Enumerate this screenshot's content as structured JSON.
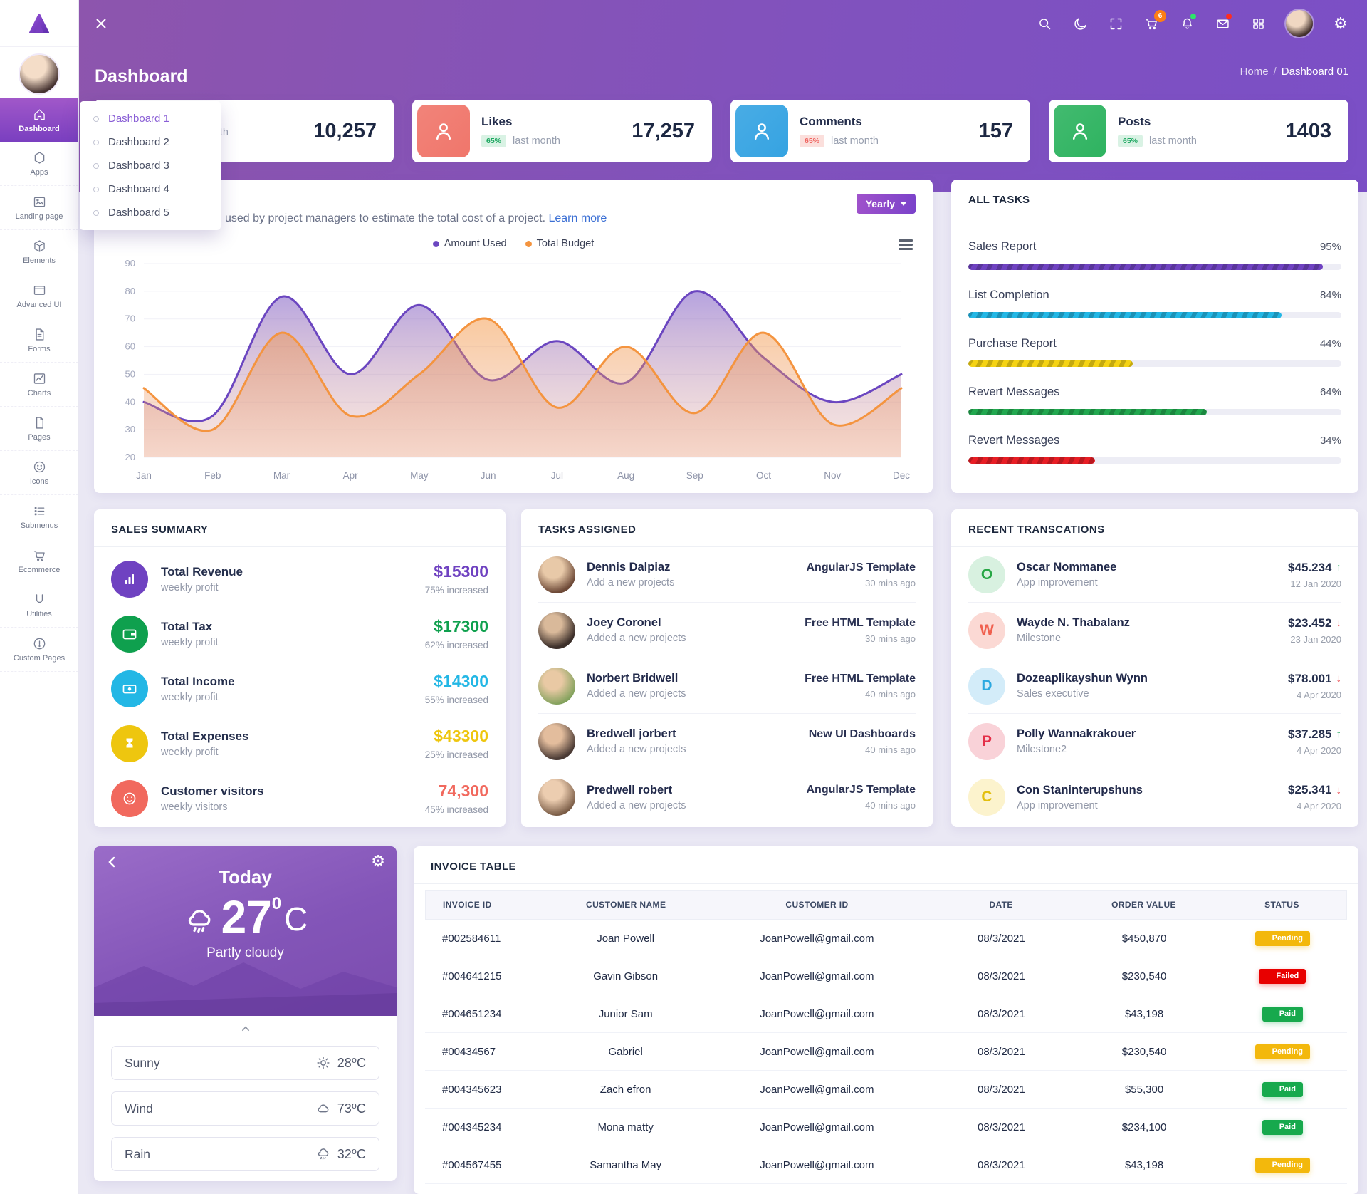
{
  "navbar": {
    "cart_badge": "6"
  },
  "header": {
    "title": "Dashboard",
    "breadcrumb_home": "Home",
    "breadcrumb_sep": "/",
    "breadcrumb_current": "Dashboard 01"
  },
  "sidebar": {
    "items": [
      {
        "label": "Dashboard",
        "active": true
      },
      {
        "label": "Apps"
      },
      {
        "label": "Landing page"
      },
      {
        "label": "Elements"
      },
      {
        "label": "Advanced UI"
      },
      {
        "label": "Forms"
      },
      {
        "label": "Charts"
      },
      {
        "label": "Pages"
      },
      {
        "label": "Icons"
      },
      {
        "label": "Submenus"
      },
      {
        "label": "Ecommerce"
      },
      {
        "label": "Utilities"
      },
      {
        "label": "Custom Pages"
      }
    ]
  },
  "dropdown": {
    "items": [
      "Dashboard 1",
      "Dashboard 2",
      "Dashboard 3",
      "Dashboard 4",
      "Dashboard 5"
    ]
  },
  "stat_cards": [
    {
      "value": "10,257",
      "period": "last month"
    },
    {
      "title": "Likes",
      "badge": "65%",
      "period": "last month",
      "value": "17,257",
      "icon_color": "#f0766b",
      "badge_bg": "#d9f2e4",
      "badge_color": "#1fa862"
    },
    {
      "title": "Comments",
      "badge": "65%",
      "period": "last month",
      "value": "157",
      "icon_color": "#35a3e2",
      "badge_bg": "#fbdfdc",
      "badge_color": "#ef6460"
    },
    {
      "title": "Posts",
      "badge": "65%",
      "period": "last month",
      "value": "1403",
      "icon_color": "#2eb360",
      "badge_bg": "#d9f2e4",
      "badge_color": "#1fa862"
    }
  ],
  "budget_card": {
    "description": "l used by project managers to estimate the total cost of a project.",
    "link": "Learn more",
    "period_button": "Yearly"
  },
  "chart_data": {
    "type": "area",
    "x": [
      "Jan",
      "Feb",
      "Mar",
      "Apr",
      "May",
      "Jun",
      "Jul",
      "Aug",
      "Sep",
      "Oct",
      "Nov",
      "Dec"
    ],
    "series": [
      {
        "name": "Amount Used",
        "color": "#6b46c0",
        "values": [
          40,
          35,
          78,
          50,
          75,
          48,
          62,
          47,
          80,
          56,
          40,
          50
        ]
      },
      {
        "name": "Total Budget",
        "color": "#f4943f",
        "values": [
          45,
          30,
          65,
          35,
          50,
          70,
          38,
          60,
          36,
          65,
          32,
          45
        ]
      }
    ],
    "ylim": [
      20,
      90
    ],
    "ytick_step": 10,
    "grid": true,
    "legend_position": "top"
  },
  "all_tasks": {
    "title": "ALL TASKS",
    "items": [
      {
        "label": "Sales Report",
        "percent": 95,
        "percent_label": "95%",
        "color": "#6f42c1"
      },
      {
        "label": "List Completion",
        "percent": 84,
        "percent_label": "84%",
        "color": "#23b7e5"
      },
      {
        "label": "Purchase Report",
        "percent": 44,
        "percent_label": "44%",
        "color": "#f5d313"
      },
      {
        "label": "Revert Messages",
        "percent": 64,
        "percent_label": "64%",
        "color": "#22a84f"
      },
      {
        "label": "Revert Messages",
        "percent": 34,
        "percent_label": "34%",
        "color": "#e81e25"
      }
    ]
  },
  "sales_summary": {
    "title": "SALES SUMMARY",
    "items": [
      {
        "title": "Total Revenue",
        "subtitle": "weekly profit",
        "value": "$15300",
        "change": "75% increased",
        "color": "#6f42c1"
      },
      {
        "title": "Total Tax",
        "subtitle": "weekly profit",
        "value": "$17300",
        "change": "62% increased",
        "color": "#0fa04e"
      },
      {
        "title": "Total Income",
        "subtitle": "weekly profit",
        "value": "$14300",
        "change": "55% increased",
        "color": "#23b7e5"
      },
      {
        "title": "Total Expenses",
        "subtitle": "weekly profit",
        "value": "$43300",
        "change": "25% increased",
        "color": "#eec60f"
      },
      {
        "title": "Customer visitors",
        "subtitle": "weekly visitors",
        "value": "74,300",
        "change": "45% increased",
        "color": "#f1695e"
      }
    ]
  },
  "tasks_assigned": {
    "title": "TASKS ASSIGNED",
    "items": [
      {
        "name": "Dennis Dalpiaz",
        "subtitle": "Add a new projects",
        "project": "AngularJS Template",
        "time": "30 mins ago"
      },
      {
        "name": "Joey Coronel",
        "subtitle": "Added a new projects",
        "project": "Free HTML Template",
        "time": "30 mins ago"
      },
      {
        "name": "Norbert Bridwell",
        "subtitle": "Added a new projects",
        "project": "Free HTML Template",
        "time": "40 mins ago"
      },
      {
        "name": "Bredwell jorbert",
        "subtitle": "Added a new projects",
        "project": "New UI Dashboards",
        "time": "40 mins ago"
      },
      {
        "name": "Predwell robert",
        "subtitle": "Added a new projects",
        "project": "AngularJS Template",
        "time": "40 mins ago"
      }
    ]
  },
  "recent_transactions": {
    "title": "RECENT TRANSCATIONS",
    "arrow_up": "↑",
    "arrow_down": "↓",
    "up_color": "#0fa04e",
    "down_color": "#e81e25",
    "items": [
      {
        "initial": "O",
        "name": "Oscar Nommanee",
        "subtitle": "App improvement",
        "amount": "$45.234",
        "direction": "up",
        "date": "12 Jan 2020",
        "avatar_bg": "#d8f1e0",
        "avatar_color": "#27a745"
      },
      {
        "initial": "W",
        "name": "Wayde N. Thabalanz",
        "subtitle": "Milestone",
        "amount": "$23.452",
        "direction": "down",
        "date": "23 Jan 2020",
        "avatar_bg": "#fbd9d4",
        "avatar_color": "#f0604f"
      },
      {
        "initial": "D",
        "name": "Dozeaplikayshun Wynn",
        "subtitle": "Sales executive",
        "amount": "$78.001",
        "direction": "down",
        "date": "4 Apr 2020",
        "avatar_bg": "#d3ecf9",
        "avatar_color": "#2ba8e0"
      },
      {
        "initial": "P",
        "name": "Polly Wannakrakouer",
        "subtitle": "Milestone2",
        "amount": "$37.285",
        "direction": "up",
        "date": "4 Apr 2020",
        "avatar_bg": "#f9d2d8",
        "avatar_color": "#e43049"
      },
      {
        "initial": "C",
        "name": "Con Staninterupshuns",
        "subtitle": "App improvement",
        "amount": "$25.341",
        "direction": "down",
        "date": "4 Apr 2020",
        "avatar_bg": "#fcf3cd",
        "avatar_color": "#e3bf0e"
      }
    ]
  },
  "weather": {
    "day": "Today",
    "temp": "27",
    "degree": "0",
    "unit": "C",
    "condition": "Partly cloudy",
    "rows": [
      {
        "label": "Sunny",
        "temp": "28⁰C"
      },
      {
        "label": "Wind",
        "temp": "73⁰C"
      },
      {
        "label": "Rain",
        "temp": "32⁰C"
      }
    ]
  },
  "invoice": {
    "title": "INVOICE TABLE",
    "columns": [
      "INVOICE ID",
      "CUSTOMER NAME",
      "CUSTOMER ID",
      "DATE",
      "ORDER VALUE",
      "STATUS"
    ],
    "rows": [
      {
        "id": "#002584611",
        "name": "Joan Powell",
        "email": "JoanPowell@gmail.com",
        "date": "08/3/2021",
        "value": "$450,870",
        "status": "Pending",
        "status_color": "#f3b80c"
      },
      {
        "id": "#004641215",
        "name": "Gavin Gibson",
        "email": "JoanPowell@gmail.com",
        "date": "08/3/2021",
        "value": "$230,540",
        "status": "Failed",
        "status_color": "#e80000"
      },
      {
        "id": "#004651234",
        "name": "Junior Sam",
        "email": "JoanPowell@gmail.com",
        "date": "08/3/2021",
        "value": "$43,198",
        "status": "Paid",
        "status_color": "#17a94d"
      },
      {
        "id": "#00434567",
        "name": "Gabriel",
        "email": "JoanPowell@gmail.com",
        "date": "08/3/2021",
        "value": "$230,540",
        "status": "Pending",
        "status_color": "#f3b80c"
      },
      {
        "id": "#004345623",
        "name": "Zach efron",
        "email": "JoanPowell@gmail.com",
        "date": "08/3/2021",
        "value": "$55,300",
        "status": "Paid",
        "status_color": "#17a94d"
      },
      {
        "id": "#004345234",
        "name": "Mona matty",
        "email": "JoanPowell@gmail.com",
        "date": "08/3/2021",
        "value": "$234,100",
        "status": "Paid",
        "status_color": "#17a94d"
      },
      {
        "id": "#004567455",
        "name": "Samantha May",
        "email": "JoanPowell@gmail.com",
        "date": "08/3/2021",
        "value": "$43,198",
        "status": "Pending",
        "status_color": "#f3b80c"
      }
    ]
  }
}
